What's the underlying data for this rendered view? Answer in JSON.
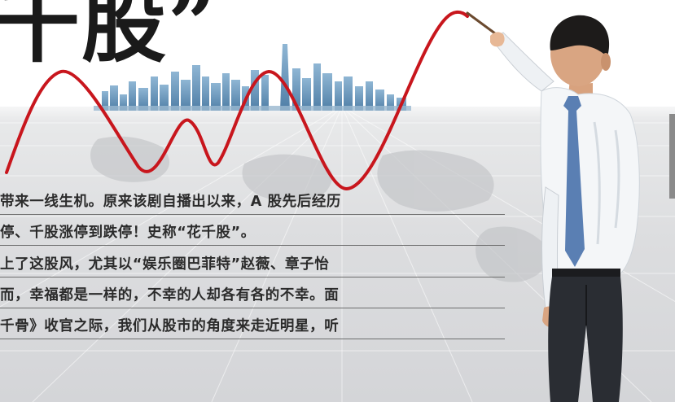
{
  "headline": "千股”",
  "body_lines": [
    "带来一线生机。原来该剧自播出以来，A 股先后经历",
    "停、千股涨停到跌停！史称“花千股”。",
    "上了这股风，尤其以“娱乐圈巴菲特”赵薇、章子怡",
    "而，幸福都是一样的，不幸的人却各有各的不幸。面",
    "千骨》收官之际，我们从股市的角度来走近明星，听"
  ],
  "colors": {
    "curve": "#c8161d",
    "text": "#2b2b2b",
    "band": "#dcdddf",
    "shirt": "#f4f6f8",
    "tie": "#5a7fb3",
    "trousers": "#2a2d33"
  }
}
